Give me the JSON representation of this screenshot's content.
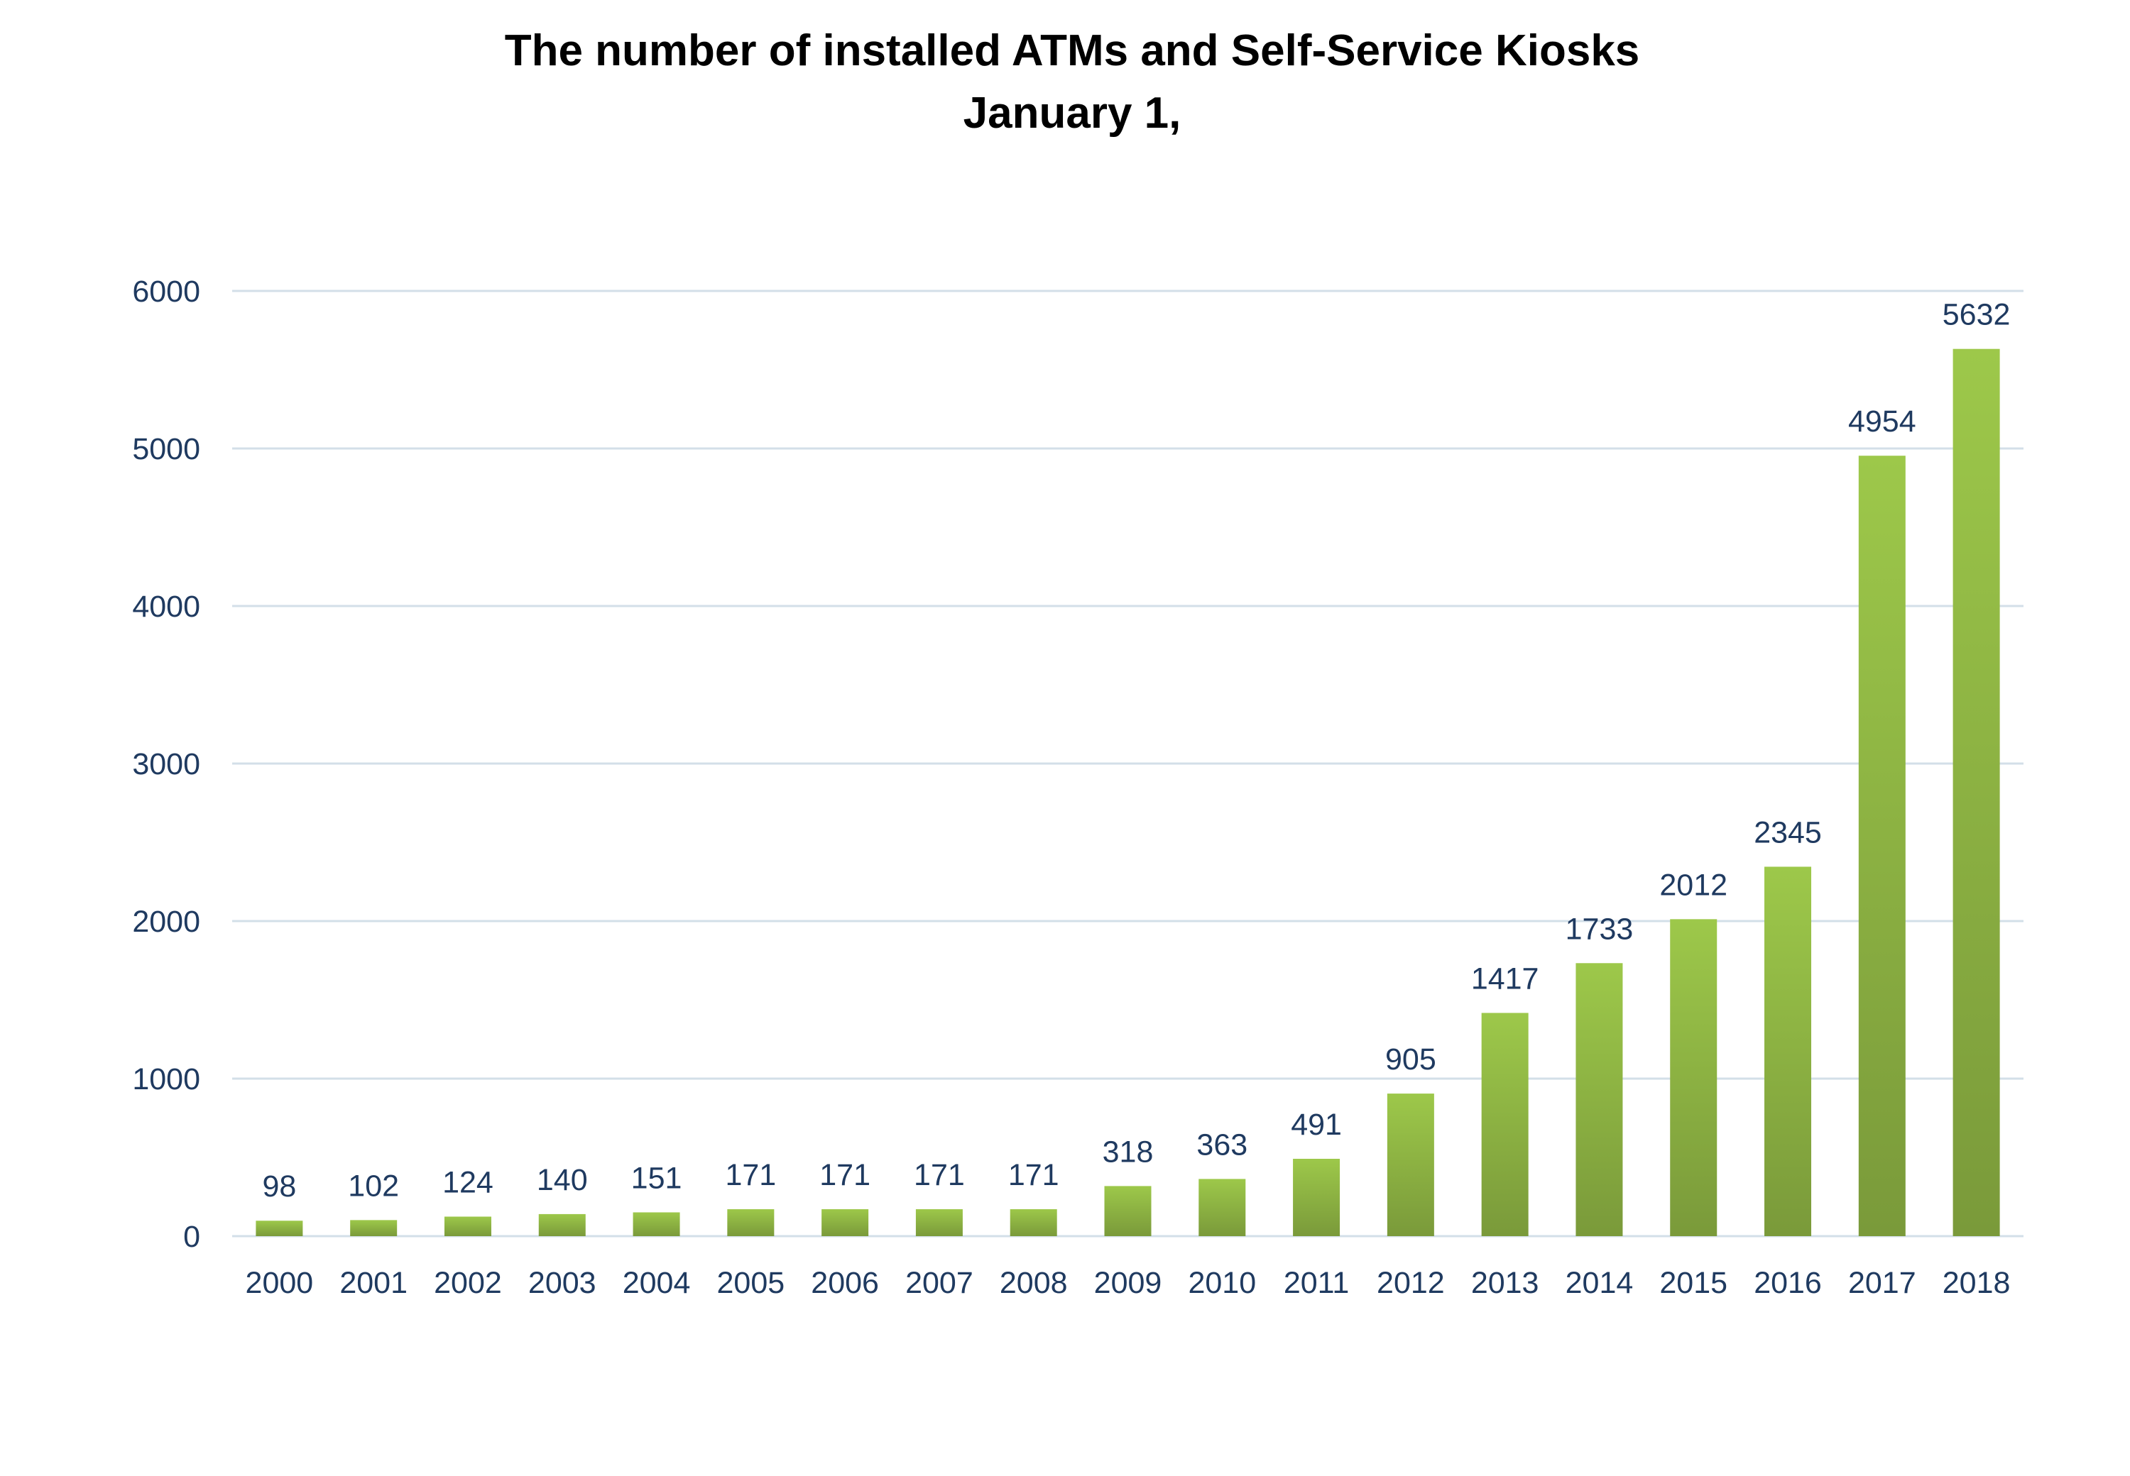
{
  "chart_data": {
    "type": "bar",
    "title": "The number of installed ATMs and Self-Service Kiosks",
    "subtitle": "January 1,",
    "xlabel": "",
    "ylabel": "",
    "categories": [
      "2000",
      "2001",
      "2002",
      "2003",
      "2004",
      "2005",
      "2006",
      "2007",
      "2008",
      "2009",
      "2010",
      "2011",
      "2012",
      "2013",
      "2014",
      "2015",
      "2016",
      "2017",
      "2018"
    ],
    "values": [
      98,
      102,
      124,
      140,
      151,
      171,
      171,
      171,
      171,
      318,
      363,
      491,
      905,
      1417,
      1733,
      2012,
      2345,
      4954,
      5632
    ],
    "ylim": [
      0,
      6000
    ],
    "yticks": [
      "0",
      "1000",
      "2000",
      "3000",
      "4000",
      "5000",
      "6000"
    ],
    "grid": "horizontal",
    "legend": "none",
    "colors": {
      "bar_top": "#9dc84a",
      "bar_bottom": "#7a9a3a",
      "grid": "#d3dfe8",
      "label_text": "#1f3a60",
      "title_text": "#000000"
    }
  }
}
